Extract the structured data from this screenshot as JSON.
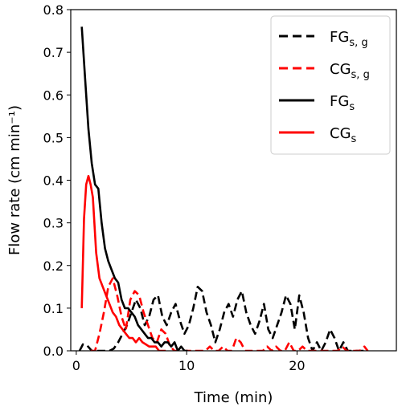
{
  "chart_data": {
    "type": "line",
    "xlabel": "Time (min)",
    "ylabel": "Flow rate (cm min⁻¹)",
    "xlim": [
      -0.5,
      29
    ],
    "ylim": [
      0,
      0.8
    ],
    "xticks": [
      0,
      10,
      20
    ],
    "yticks": [
      0.0,
      0.1,
      0.2,
      0.3,
      0.4,
      0.5,
      0.6,
      0.7,
      0.8
    ],
    "xtick_labels": [
      "0",
      "10",
      "20"
    ],
    "ytick_labels": [
      "0.0",
      "0.1",
      "0.2",
      "0.3",
      "0.4",
      "0.5",
      "0.6",
      "0.7",
      "0.8"
    ],
    "grid": false,
    "legend_position": "top-right",
    "series": [
      {
        "name": "FGs, g",
        "name_main": "FG",
        "name_sub": "s, g",
        "color": "#000000",
        "dash": "dashed",
        "x": [
          0.3,
          0.6,
          1.0,
          1.4,
          1.8,
          2.2,
          2.6,
          3.0,
          3.4,
          3.8,
          4.2,
          4.6,
          5.0,
          5.4,
          5.8,
          6.2,
          6.6,
          7.0,
          7.4,
          7.8,
          8.2,
          8.6,
          9.0,
          9.4,
          9.8,
          10.2,
          10.6,
          11.0,
          11.4,
          11.8,
          12.2,
          12.6,
          13.0,
          13.4,
          13.8,
          14.2,
          14.6,
          15.0,
          15.4,
          15.8,
          16.2,
          16.6,
          17.0,
          17.4,
          17.8,
          18.2,
          18.6,
          19.0,
          19.4,
          19.8,
          20.2,
          20.6,
          21.0,
          21.4,
          21.8,
          22.2,
          22.6,
          23.0,
          23.4,
          23.8,
          24.2,
          24.6,
          25.0,
          25.4,
          25.8,
          26.2
        ],
        "y": [
          0.0,
          0.015,
          0.012,
          0.0,
          0.0,
          0.0,
          0.0,
          0.0,
          0.005,
          0.02,
          0.04,
          0.06,
          0.09,
          0.12,
          0.1,
          0.06,
          0.08,
          0.12,
          0.13,
          0.08,
          0.06,
          0.09,
          0.11,
          0.07,
          0.04,
          0.06,
          0.1,
          0.15,
          0.14,
          0.09,
          0.06,
          0.02,
          0.05,
          0.09,
          0.11,
          0.08,
          0.12,
          0.14,
          0.09,
          0.06,
          0.04,
          0.07,
          0.11,
          0.05,
          0.03,
          0.06,
          0.09,
          0.13,
          0.11,
          0.05,
          0.13,
          0.09,
          0.03,
          0.0,
          0.02,
          0.0,
          0.02,
          0.05,
          0.03,
          0.0,
          0.02,
          0.0,
          0.0,
          0.0,
          0.0,
          0.0
        ]
      },
      {
        "name": "CGs, g",
        "name_main": "CG",
        "name_sub": "s, g",
        "color": "#ff0000",
        "dash": "dashed",
        "x": [
          1.3,
          1.7,
          2.1,
          2.5,
          2.9,
          3.3,
          3.7,
          4.1,
          4.5,
          4.9,
          5.3,
          5.7,
          6.1,
          6.5,
          6.9,
          7.3,
          7.7,
          8.1,
          8.5,
          8.9,
          9.3,
          9.7,
          10.1,
          10.5,
          10.9,
          11.3,
          11.7,
          12.1,
          12.5,
          12.9,
          13.3,
          13.7,
          14.1,
          14.5,
          14.9,
          15.3,
          15.7,
          16.1,
          16.5,
          16.9,
          17.3,
          17.7,
          18.1,
          18.5,
          18.9,
          19.3,
          19.7,
          20.1,
          20.5,
          20.9,
          21.3,
          21.7,
          22.1,
          22.5,
          22.9,
          23.3,
          23.7,
          24.1,
          24.5,
          24.9,
          25.3,
          25.7,
          26.1,
          26.4
        ],
        "y": [
          0.0,
          0.0,
          0.04,
          0.09,
          0.15,
          0.17,
          0.13,
          0.08,
          0.05,
          0.12,
          0.14,
          0.13,
          0.09,
          0.06,
          0.03,
          0.02,
          0.05,
          0.04,
          0.01,
          0.0,
          0.0,
          0.0,
          0.0,
          0.0,
          0.0,
          0.0,
          0.0,
          0.01,
          0.0,
          0.0,
          0.01,
          0.0,
          0.0,
          0.03,
          0.02,
          0.0,
          0.0,
          0.0,
          0.0,
          0.0,
          0.01,
          0.0,
          0.01,
          0.0,
          0.0,
          0.02,
          0.0,
          0.0,
          0.01,
          0.0,
          0.0,
          0.0,
          0.0,
          0.0,
          0.0,
          0.0,
          0.0,
          0.01,
          0.0,
          0.0,
          0.0,
          0.0,
          0.01,
          0.0
        ]
      },
      {
        "name": "FGs",
        "name_main": "FG",
        "name_sub": "s",
        "color": "#000000",
        "dash": "solid",
        "x": [
          0.5,
          0.8,
          1.1,
          1.4,
          1.7,
          2.0,
          2.3,
          2.6,
          2.9,
          3.2,
          3.5,
          3.8,
          4.1,
          4.4,
          4.7,
          5.0,
          5.3,
          5.6,
          5.9,
          6.2,
          6.5,
          6.8,
          7.1,
          7.4,
          7.7,
          8.0,
          8.3,
          8.6,
          8.9,
          9.2,
          9.5,
          9.8,
          10.1
        ],
        "y": [
          0.76,
          0.64,
          0.52,
          0.44,
          0.39,
          0.38,
          0.3,
          0.24,
          0.21,
          0.19,
          0.17,
          0.16,
          0.12,
          0.1,
          0.1,
          0.09,
          0.08,
          0.06,
          0.05,
          0.04,
          0.03,
          0.03,
          0.02,
          0.02,
          0.01,
          0.02,
          0.02,
          0.01,
          0.02,
          0.0,
          0.01,
          0.0,
          0.0
        ]
      },
      {
        "name": "CGs",
        "name_main": "CG",
        "name_sub": "s",
        "color": "#ff0000",
        "dash": "solid",
        "x": [
          0.5,
          0.7,
          0.9,
          1.1,
          1.3,
          1.5,
          1.8,
          2.1,
          2.4,
          2.7,
          3.0,
          3.3,
          3.6,
          3.9,
          4.2,
          4.5,
          4.8,
          5.1,
          5.4,
          5.7,
          6.0,
          6.3,
          6.6,
          6.9,
          7.2,
          7.5,
          7.8,
          8.1
        ],
        "y": [
          0.1,
          0.31,
          0.39,
          0.41,
          0.39,
          0.36,
          0.23,
          0.17,
          0.15,
          0.13,
          0.11,
          0.09,
          0.08,
          0.06,
          0.05,
          0.04,
          0.03,
          0.03,
          0.02,
          0.03,
          0.02,
          0.015,
          0.01,
          0.01,
          0.01,
          0.0,
          0.0,
          0.0
        ]
      }
    ]
  }
}
